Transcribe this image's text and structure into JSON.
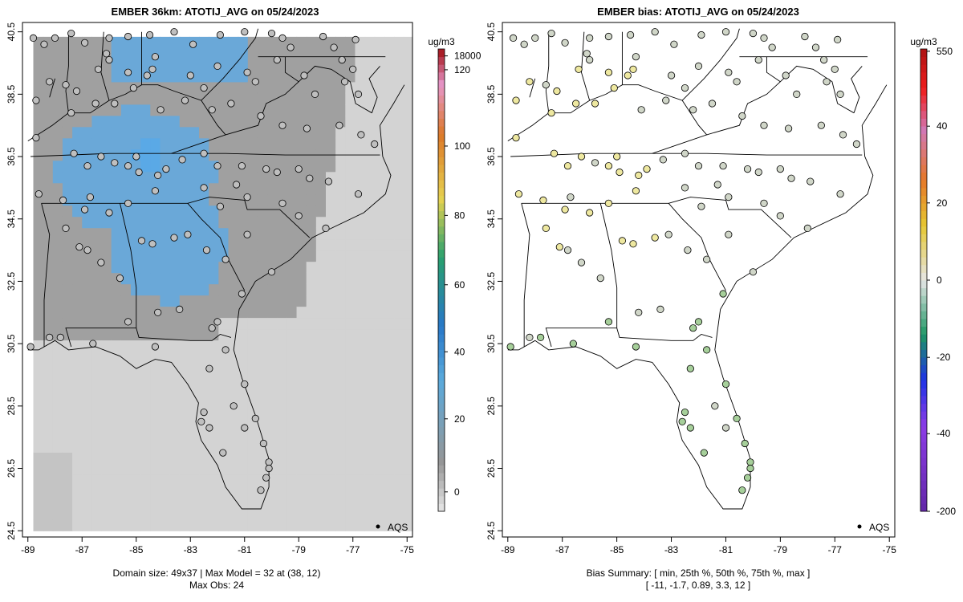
{
  "left_panel": {
    "title": "EMBER 36km: ATOTIJ_AVG on 05/24/2023",
    "unit": "ug/m3",
    "legend_label": "AQS",
    "footer_line1": "Domain size: 49x37 | Max Model = 32 at (38, 12)",
    "footer_line2": "Max Obs: 24"
  },
  "right_panel": {
    "title": "EMBER bias: ATOTIJ_AVG on 05/24/2023",
    "unit": "ug/m3",
    "legend_label": "AQS",
    "footer_line1": "Bias Summary: [ min, 25th %, 50th %, 75th %, max ]",
    "footer_line2": "[ -11,   -1.7,   0.89,   3.3,   12 ]"
  },
  "colors": {
    "grid_light": "#d3d3d3",
    "grid_gray": "#a0a0a0",
    "grid_blue": "#6aa8d8",
    "grid_bright_blue": "#5aa9e6",
    "map_line": "#000000",
    "obs_gray": "#bfbfbf",
    "bias_yellow": "#eee8a0",
    "bias_green": "#a6cf9a",
    "bias_light": "#d0d6c8"
  },
  "chart_data": [
    {
      "type": "heatmap",
      "title": "EMBER 36km: ATOTIJ_AVG on 05/24/2023",
      "xlim": [
        -89.2,
        -74.8
      ],
      "ylim": [
        24.3,
        40.8
      ],
      "x_ticks": [
        -89,
        -87,
        -85,
        -83,
        -81,
        -79,
        -77,
        -75
      ],
      "x_tick_labels": [
        "-89",
        "-87",
        "-85",
        "-83",
        "-81",
        "-79",
        "-77",
        "-75"
      ],
      "y_ticks": [
        24.5,
        26.5,
        28.5,
        30.5,
        32.5,
        34.5,
        36.5,
        38.5,
        40.5
      ],
      "y_tick_labels": [
        "24.5",
        "26.5",
        "28.5",
        "30.5",
        "32.5",
        "34.5",
        "36.5",
        "38.5",
        "40.5"
      ],
      "colorbar": {
        "unit": "ug/m3",
        "tick_values": [
          0,
          20,
          40,
          60,
          80,
          100,
          120,
          18000
        ],
        "tick_labels": [
          "0",
          "20",
          "40",
          "60",
          "80",
          "100",
          "120",
          "18000"
        ]
      },
      "domain_size": "49x37",
      "max_model": 32,
      "max_model_at": [
        38,
        12
      ],
      "max_obs": 24,
      "observation_network": "AQS"
    },
    {
      "type": "scatter",
      "title": "EMBER bias: ATOTIJ_AVG on 05/24/2023",
      "xlim": [
        -89.2,
        -74.8
      ],
      "ylim": [
        24.3,
        40.8
      ],
      "x_ticks": [
        -89,
        -87,
        -85,
        -83,
        -81,
        -79,
        -77,
        -75
      ],
      "x_tick_labels": [
        "-89",
        "-87",
        "-85",
        "-83",
        "-81",
        "-79",
        "-77",
        "-75"
      ],
      "y_ticks": [
        24.5,
        26.5,
        28.5,
        30.5,
        32.5,
        34.5,
        36.5,
        38.5,
        40.5
      ],
      "y_tick_labels": [
        "24.5",
        "26.5",
        "28.5",
        "30.5",
        "32.5",
        "34.5",
        "36.5",
        "38.5",
        "40.5"
      ],
      "colorbar": {
        "unit": "ug/m3",
        "tick_values": [
          -200,
          -40,
          -20,
          0,
          20,
          40,
          550
        ],
        "tick_labels": [
          "-200",
          "-40",
          "-20",
          "0",
          "20",
          "40",
          "550"
        ]
      },
      "bias_summary": {
        "min": -11,
        "p25": -1.7,
        "median": 0.89,
        "p75": 3.3,
        "max": 12
      },
      "observation_network": "AQS"
    }
  ],
  "stations": [
    [
      -88.8,
      40.3
    ],
    [
      -88.4,
      40.1
    ],
    [
      -88.0,
      40.3
    ],
    [
      -87.4,
      40.45
    ],
    [
      -86.9,
      40.15
    ],
    [
      -86.0,
      40.3
    ],
    [
      -85.3,
      40.35
    ],
    [
      -84.5,
      40.4
    ],
    [
      -83.6,
      40.5
    ],
    [
      -82.9,
      40.1
    ],
    [
      -81.9,
      40.4
    ],
    [
      -81.0,
      40.5
    ],
    [
      -80.0,
      40.45
    ],
    [
      -79.6,
      40.3
    ],
    [
      -79.3,
      40.0
    ],
    [
      -78.1,
      40.35
    ],
    [
      -77.7,
      40.0
    ],
    [
      -76.9,
      40.25
    ],
    [
      -86.1,
      39.8
    ],
    [
      -86.0,
      39.6
    ],
    [
      -86.4,
      39.3
    ],
    [
      -85.3,
      39.2
    ],
    [
      -84.6,
      39.1
    ],
    [
      -84.4,
      39.3
    ],
    [
      -84.3,
      39.7
    ],
    [
      -83.0,
      39.1
    ],
    [
      -82.5,
      38.7
    ],
    [
      -82.0,
      39.4
    ],
    [
      -80.9,
      39.2
    ],
    [
      -80.6,
      38.9
    ],
    [
      -79.8,
      39.6
    ],
    [
      -78.8,
      39.1
    ],
    [
      -77.4,
      39.6
    ],
    [
      -77.0,
      39.3
    ],
    [
      -78.4,
      38.5
    ],
    [
      -77.3,
      38.9
    ],
    [
      -76.8,
      38.5
    ],
    [
      -88.2,
      38.9
    ],
    [
      -87.6,
      38.8
    ],
    [
      -87.2,
      38.6
    ],
    [
      -88.7,
      38.3
    ],
    [
      -87.4,
      37.9
    ],
    [
      -86.5,
      38.2
    ],
    [
      -85.8,
      38.2
    ],
    [
      -85.1,
      38.7
    ],
    [
      -84.1,
      38.0
    ],
    [
      -83.2,
      38.3
    ],
    [
      -82.2,
      38.0
    ],
    [
      -81.5,
      38.2
    ],
    [
      -80.4,
      37.8
    ],
    [
      -79.6,
      37.5
    ],
    [
      -78.7,
      37.4
    ],
    [
      -77.5,
      37.5
    ],
    [
      -76.7,
      37.2
    ],
    [
      -76.2,
      36.9
    ],
    [
      -88.7,
      37.1
    ],
    [
      -87.3,
      36.6
    ],
    [
      -86.8,
      36.2
    ],
    [
      -86.3,
      36.5
    ],
    [
      -85.8,
      36.3
    ],
    [
      -85.3,
      36.2
    ],
    [
      -85.0,
      36.5
    ],
    [
      -84.9,
      36.0
    ],
    [
      -84.2,
      35.9
    ],
    [
      -83.9,
      36.1
    ],
    [
      -83.3,
      36.4
    ],
    [
      -82.5,
      36.6
    ],
    [
      -82.0,
      36.2
    ],
    [
      -81.1,
      36.2
    ],
    [
      -80.2,
      36.1
    ],
    [
      -79.8,
      36.0
    ],
    [
      -79.0,
      36.1
    ],
    [
      -78.6,
      35.8
    ],
    [
      -77.9,
      35.7
    ],
    [
      -76.8,
      35.3
    ],
    [
      -81.3,
      35.6
    ],
    [
      -82.5,
      35.5
    ],
    [
      -84.3,
      35.4
    ],
    [
      -85.3,
      35.0
    ],
    [
      -86.0,
      34.7
    ],
    [
      -86.7,
      35.2
    ],
    [
      -87.7,
      35.1
    ],
    [
      -88.6,
      35.3
    ],
    [
      -86.9,
      34.8
    ],
    [
      -87.6,
      34.2
    ],
    [
      -86.8,
      33.5
    ],
    [
      -87.1,
      33.6
    ],
    [
      -86.3,
      33.1
    ],
    [
      -85.6,
      32.6
    ],
    [
      -84.8,
      33.8
    ],
    [
      -84.4,
      33.7
    ],
    [
      -83.6,
      33.9
    ],
    [
      -83.1,
      34.0
    ],
    [
      -82.4,
      33.5
    ],
    [
      -81.7,
      33.2
    ],
    [
      -80.9,
      34.0
    ],
    [
      -81.9,
      34.9
    ],
    [
      -80.9,
      35.2
    ],
    [
      -79.6,
      35.0
    ],
    [
      -79.0,
      34.6
    ],
    [
      -78.0,
      34.2
    ],
    [
      -80.0,
      32.8
    ],
    [
      -81.1,
      32.1
    ],
    [
      -82.0,
      31.2
    ],
    [
      -83.4,
      31.6
    ],
    [
      -84.2,
      31.5
    ],
    [
      -85.3,
      31.2
    ],
    [
      -87.8,
      30.7
    ],
    [
      -88.2,
      30.7
    ],
    [
      -88.9,
      30.4
    ],
    [
      -86.6,
      30.5
    ],
    [
      -84.3,
      30.4
    ],
    [
      -82.2,
      31.0
    ],
    [
      -81.7,
      30.3
    ],
    [
      -82.3,
      29.7
    ],
    [
      -81.4,
      28.5
    ],
    [
      -81.0,
      29.2
    ],
    [
      -80.6,
      28.1
    ],
    [
      -82.6,
      28.0
    ],
    [
      -82.3,
      27.8
    ],
    [
      -82.5,
      28.3
    ],
    [
      -81.8,
      27.0
    ],
    [
      -81.0,
      27.8
    ],
    [
      -80.1,
      26.7
    ],
    [
      -80.2,
      26.2
    ],
    [
      -80.4,
      25.8
    ],
    [
      -80.3,
      27.3
    ],
    [
      -80.1,
      26.5
    ]
  ]
}
